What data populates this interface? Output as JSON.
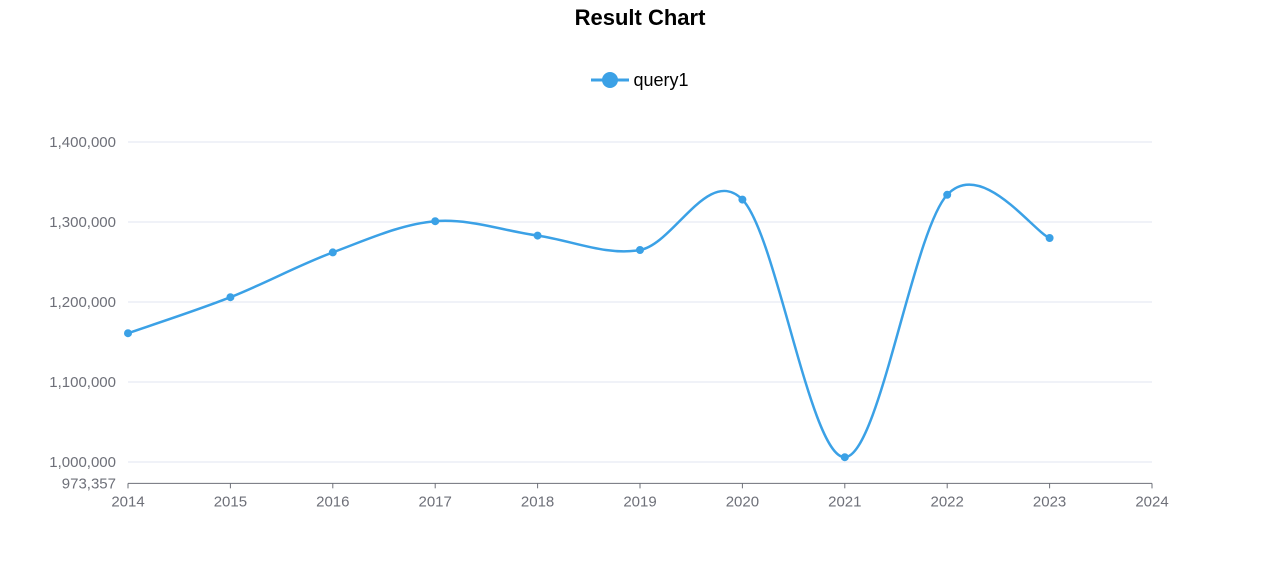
{
  "chart_data": {
    "type": "line",
    "title": "Result Chart",
    "legend_position": "top-center",
    "grid": true,
    "smooth": true,
    "xlabel": "",
    "ylabel": "",
    "x_ticks": [
      "2014",
      "2015",
      "2016",
      "2017",
      "2018",
      "2019",
      "2020",
      "2021",
      "2022",
      "2023",
      "2024"
    ],
    "xlim": [
      2014,
      2024
    ],
    "y_ticks": [
      1000000,
      1100000,
      1200000,
      1300000,
      1400000
    ],
    "y_tick_labels": [
      "1,000,000",
      "1,100,000",
      "1,200,000",
      "1,300,000",
      "1,400,000"
    ],
    "y_min_label": "973,357",
    "ylim": [
      973357,
      1400000
    ],
    "series": [
      {
        "name": "query1",
        "color": "#3ba1e6",
        "points": [
          {
            "x": 2014,
            "y": 1161000
          },
          {
            "x": 2015,
            "y": 1206000
          },
          {
            "x": 2016,
            "y": 1262000
          },
          {
            "x": 2017,
            "y": 1301000
          },
          {
            "x": 2018,
            "y": 1283000
          },
          {
            "x": 2019,
            "y": 1265000
          },
          {
            "x": 2020,
            "y": 1328000
          },
          {
            "x": 2021,
            "y": 1006000
          },
          {
            "x": 2022,
            "y": 1334000
          },
          {
            "x": 2023,
            "y": 1280000
          }
        ]
      }
    ]
  }
}
